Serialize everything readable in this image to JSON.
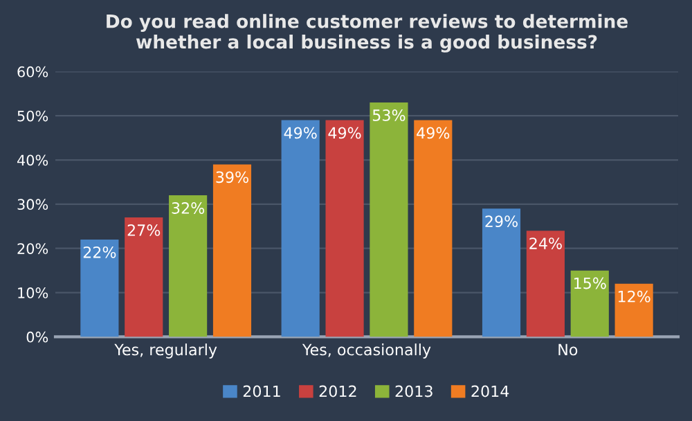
{
  "chart_data": {
    "type": "bar",
    "title": "Do you read online customer reviews to determine\nwhether a local business is a good business?",
    "categories": [
      "Yes, regularly",
      "Yes, occasionally",
      "No"
    ],
    "series": [
      {
        "name": "2011",
        "color": "#4a86c8",
        "values": [
          22,
          49,
          29
        ],
        "value_labels": [
          "22%",
          "49%",
          "29%"
        ]
      },
      {
        "name": "2012",
        "color": "#c8413f",
        "values": [
          27,
          49,
          24
        ],
        "value_labels": [
          "27%",
          "49%",
          "24%"
        ]
      },
      {
        "name": "2013",
        "color": "#8cb43a",
        "values": [
          32,
          53,
          15
        ],
        "value_labels": [
          "32%",
          "53%",
          "15%"
        ]
      },
      {
        "name": "2014",
        "color": "#f07c22",
        "values": [
          39,
          49,
          12
        ],
        "value_labels": [
          "39%",
          "49%",
          "12%"
        ]
      }
    ],
    "ylim": [
      0,
      60
    ],
    "yticks": [
      {
        "value": 0,
        "label": "0%"
      },
      {
        "value": 10,
        "label": "10%"
      },
      {
        "value": 20,
        "label": "20%"
      },
      {
        "value": 30,
        "label": "30%"
      },
      {
        "value": 40,
        "label": "40%"
      },
      {
        "value": 50,
        "label": "50%"
      },
      {
        "value": 60,
        "label": "60%"
      }
    ],
    "grid": "y",
    "legend": "bottom"
  }
}
